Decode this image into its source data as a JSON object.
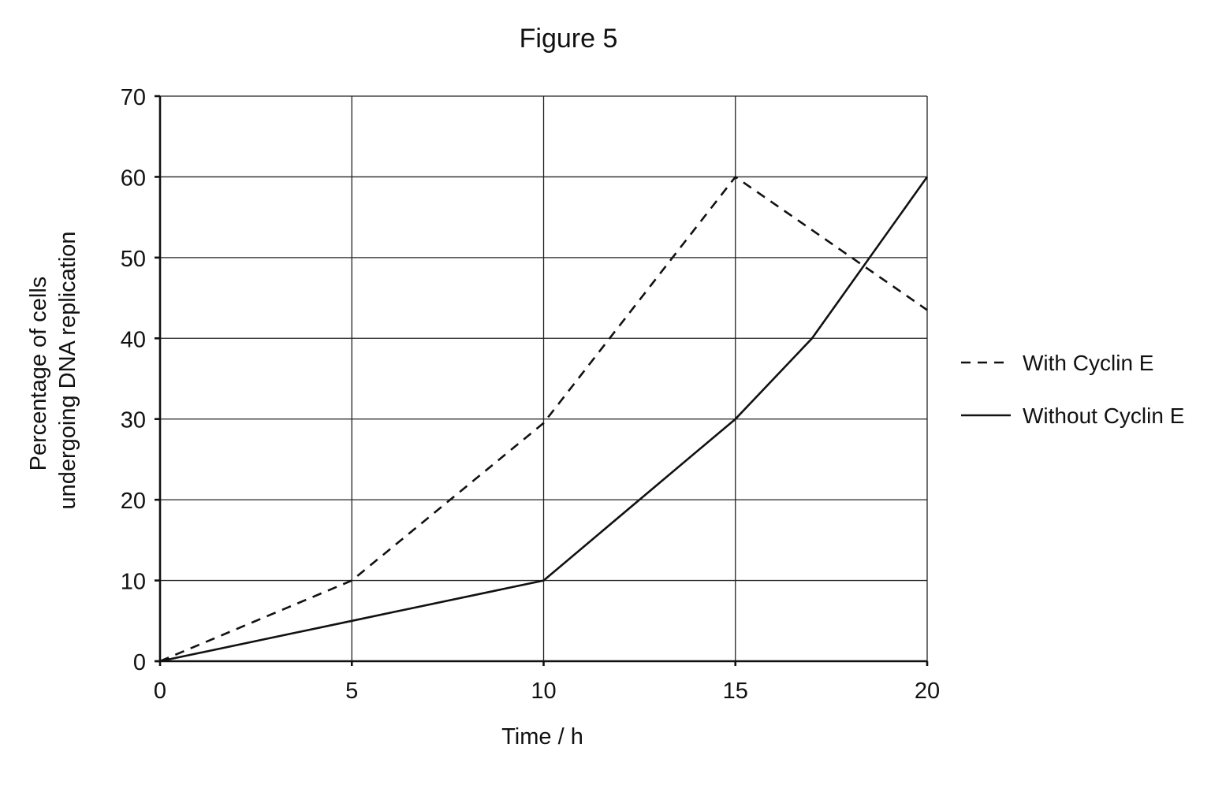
{
  "chart_data": {
    "type": "line",
    "title": "Figure 5",
    "xlabel": "Time / h",
    "ylabel": [
      "Percentage of cells",
      "undergoing DNA replication"
    ],
    "xlim": [
      0,
      20
    ],
    "ylim": [
      0,
      70
    ],
    "xticks": [
      0,
      5,
      10,
      15,
      20
    ],
    "yticks": [
      0,
      10,
      20,
      30,
      40,
      50,
      60,
      70
    ],
    "grid": true,
    "legend_position": "right",
    "series": [
      {
        "name": "With Cyclin E",
        "style": "dashed",
        "color": "#111111",
        "x": [
          0,
          5,
          10,
          15,
          20
        ],
        "y": [
          0,
          10,
          29.5,
          60,
          43.5
        ]
      },
      {
        "name": "Without Cyclin E",
        "style": "solid",
        "color": "#111111",
        "x": [
          0,
          5,
          10,
          12.5,
          15,
          17,
          20
        ],
        "y": [
          0,
          5,
          10,
          20,
          30,
          40,
          60
        ]
      }
    ]
  }
}
